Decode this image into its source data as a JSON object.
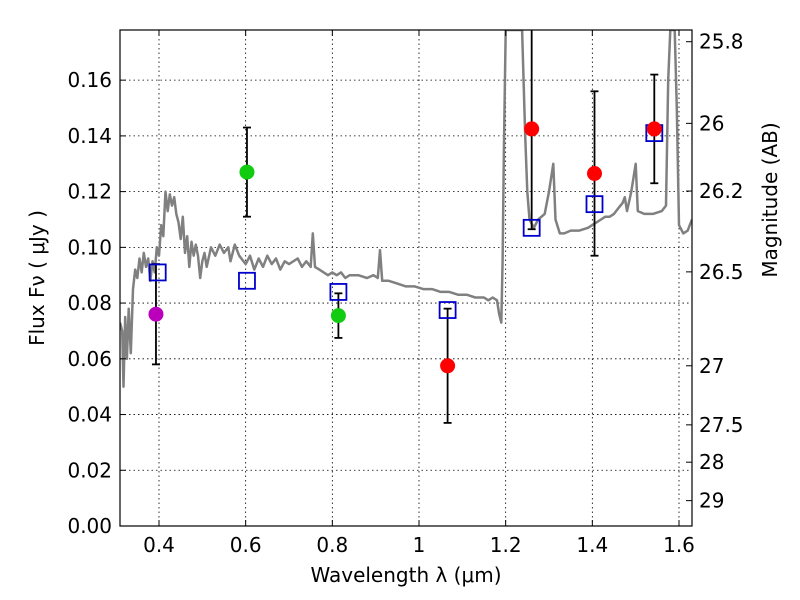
{
  "chart_data": {
    "type": "scatter",
    "xlabel": "Wavelength  λ (μm)",
    "ylabel": "Flux  Fν  ( μJy )",
    "ylabel_right": "Magnitude (AB)",
    "xlim": [
      0.31,
      1.63
    ],
    "ylim": [
      0.0,
      0.178
    ],
    "x_ticks": [
      0.4,
      0.6,
      0.8,
      1.0,
      1.2,
      1.4,
      1.6
    ],
    "x_tick_labels": [
      "0.4",
      "0.6",
      "0.8",
      "1",
      "1.2",
      "1.4",
      "1.6"
    ],
    "y_ticks": [
      0.0,
      0.02,
      0.04,
      0.06,
      0.08,
      0.1,
      0.12,
      0.14,
      0.16
    ],
    "y_tick_labels": [
      "0.00",
      "0.02",
      "0.04",
      "0.06",
      "0.08",
      "0.10",
      "0.12",
      "0.14",
      "0.16"
    ],
    "right_ticks": [
      {
        "label": "25.8",
        "flux": 0.1738
      },
      {
        "label": "26",
        "flux": 0.1445
      },
      {
        "label": "26.2",
        "flux": 0.1202
      },
      {
        "label": "26.5",
        "flux": 0.0912
      },
      {
        "label": "27",
        "flux": 0.0575
      },
      {
        "label": "27.5",
        "flux": 0.0363
      },
      {
        "label": "28",
        "flux": 0.0229
      },
      {
        "label": "29",
        "flux": 0.0091
      }
    ],
    "grid": true,
    "grid_style": "dotted",
    "colors": {
      "spectrum": "#808080",
      "model_box": "#0000cc",
      "error_bar": "#000000",
      "purple": "#bb00bb",
      "green": "#11cc11",
      "red": "#ff0000"
    },
    "series": [
      {
        "name": "observed photometry",
        "points": [
          {
            "x": 0.393,
            "y": 0.076,
            "err": 0.018,
            "color": "purple"
          },
          {
            "x": 0.603,
            "y": 0.127,
            "err": 0.016,
            "color": "green"
          },
          {
            "x": 0.814,
            "y": 0.0755,
            "err": 0.008,
            "color": "green"
          },
          {
            "x": 1.066,
            "y": 0.0575,
            "err": 0.0205,
            "color": "red"
          },
          {
            "x": 1.26,
            "y": 0.1425,
            "err": 0.036,
            "color": "red"
          },
          {
            "x": 1.405,
            "y": 0.1265,
            "err": 0.0295,
            "color": "red"
          },
          {
            "x": 1.543,
            "y": 0.1425,
            "err": 0.0195,
            "color": "red"
          }
        ]
      },
      {
        "name": "model band flux",
        "points": [
          {
            "x": 0.397,
            "y": 0.091
          },
          {
            "x": 0.603,
            "y": 0.088
          },
          {
            "x": 0.814,
            "y": 0.084
          },
          {
            "x": 1.066,
            "y": 0.0775
          },
          {
            "x": 1.26,
            "y": 0.107
          },
          {
            "x": 1.405,
            "y": 0.1155
          },
          {
            "x": 1.543,
            "y": 0.141
          }
        ]
      },
      {
        "name": "model spectrum",
        "points": [
          [
            0.31,
            0.073
          ],
          [
            0.315,
            0.07
          ],
          [
            0.318,
            0.05
          ],
          [
            0.322,
            0.075
          ],
          [
            0.326,
            0.06
          ],
          [
            0.33,
            0.078
          ],
          [
            0.335,
            0.062
          ],
          [
            0.34,
            0.085
          ],
          [
            0.345,
            0.092
          ],
          [
            0.35,
            0.089
          ],
          [
            0.355,
            0.096
          ],
          [
            0.36,
            0.091
          ],
          [
            0.365,
            0.098
          ],
          [
            0.37,
            0.093
          ],
          [
            0.375,
            0.096
          ],
          [
            0.38,
            0.088
          ],
          [
            0.385,
            0.095
          ],
          [
            0.39,
            0.091
          ],
          [
            0.395,
            0.1
          ],
          [
            0.4,
            0.097
          ],
          [
            0.405,
            0.108
          ],
          [
            0.41,
            0.104
          ],
          [
            0.415,
            0.12
          ],
          [
            0.42,
            0.113
          ],
          [
            0.425,
            0.119
          ],
          [
            0.43,
            0.115
          ],
          [
            0.435,
            0.118
          ],
          [
            0.44,
            0.112
          ],
          [
            0.445,
            0.109
          ],
          [
            0.45,
            0.103
          ],
          [
            0.455,
            0.111
          ],
          [
            0.46,
            0.098
          ],
          [
            0.465,
            0.104
          ],
          [
            0.47,
            0.093
          ],
          [
            0.475,
            0.102
          ],
          [
            0.48,
            0.097
          ],
          [
            0.485,
            0.101
          ],
          [
            0.49,
            0.097
          ],
          [
            0.495,
            0.089
          ],
          [
            0.5,
            0.095
          ],
          [
            0.505,
            0.098
          ],
          [
            0.51,
            0.093
          ],
          [
            0.52,
            0.1
          ],
          [
            0.53,
            0.097
          ],
          [
            0.54,
            0.101
          ],
          [
            0.55,
            0.098
          ],
          [
            0.56,
            0.1
          ],
          [
            0.565,
            0.095
          ],
          [
            0.575,
            0.101
          ],
          [
            0.585,
            0.097
          ],
          [
            0.6,
            0.094
          ],
          [
            0.61,
            0.097
          ],
          [
            0.62,
            0.092
          ],
          [
            0.63,
            0.096
          ],
          [
            0.64,
            0.093
          ],
          [
            0.65,
            0.097
          ],
          [
            0.66,
            0.094
          ],
          [
            0.67,
            0.096
          ],
          [
            0.68,
            0.092
          ],
          [
            0.69,
            0.095
          ],
          [
            0.7,
            0.094
          ],
          [
            0.72,
            0.096
          ],
          [
            0.73,
            0.093
          ],
          [
            0.74,
            0.095
          ],
          [
            0.75,
            0.093
          ],
          [
            0.755,
            0.105
          ],
          [
            0.76,
            0.093
          ],
          [
            0.77,
            0.092
          ],
          [
            0.78,
            0.091
          ],
          [
            0.79,
            0.09
          ],
          [
            0.8,
            0.091
          ],
          [
            0.81,
            0.09
          ],
          [
            0.82,
            0.091
          ],
          [
            0.83,
            0.089
          ],
          [
            0.84,
            0.09
          ],
          [
            0.86,
            0.09
          ],
          [
            0.88,
            0.089
          ],
          [
            0.895,
            0.09
          ],
          [
            0.905,
            0.089
          ],
          [
            0.91,
            0.099
          ],
          [
            0.915,
            0.088
          ],
          [
            0.93,
            0.088
          ],
          [
            0.95,
            0.087
          ],
          [
            0.97,
            0.086
          ],
          [
            0.99,
            0.086
          ],
          [
            1.01,
            0.085
          ],
          [
            1.03,
            0.085
          ],
          [
            1.05,
            0.084
          ],
          [
            1.07,
            0.084
          ],
          [
            1.09,
            0.083
          ],
          [
            1.11,
            0.083
          ],
          [
            1.13,
            0.082
          ],
          [
            1.15,
            0.082
          ],
          [
            1.16,
            0.081
          ],
          [
            1.17,
            0.082
          ],
          [
            1.18,
            0.081
          ],
          [
            1.185,
            0.076
          ],
          [
            1.19,
            0.073
          ],
          [
            1.193,
            0.095
          ],
          [
            1.196,
            0.135
          ],
          [
            1.2,
            0.178
          ],
          [
            1.21,
            0.178
          ],
          [
            1.22,
            0.178
          ],
          [
            1.23,
            0.178
          ],
          [
            1.238,
            0.178
          ],
          [
            1.245,
            0.14
          ],
          [
            1.25,
            0.12
          ],
          [
            1.255,
            0.11
          ],
          [
            1.265,
            0.107
          ],
          [
            1.275,
            0.11
          ],
          [
            1.29,
            0.112
          ],
          [
            1.3,
            0.12
          ],
          [
            1.31,
            0.13
          ],
          [
            1.315,
            0.11
          ],
          [
            1.325,
            0.105
          ],
          [
            1.335,
            0.105
          ],
          [
            1.35,
            0.106
          ],
          [
            1.37,
            0.106
          ],
          [
            1.39,
            0.107
          ],
          [
            1.4,
            0.108
          ],
          [
            1.41,
            0.109
          ],
          [
            1.42,
            0.11
          ],
          [
            1.43,
            0.111
          ],
          [
            1.44,
            0.111
          ],
          [
            1.45,
            0.112
          ],
          [
            1.46,
            0.114
          ],
          [
            1.47,
            0.116
          ],
          [
            1.475,
            0.118
          ],
          [
            1.48,
            0.113
          ],
          [
            1.49,
            0.12
          ],
          [
            1.5,
            0.13
          ],
          [
            1.505,
            0.113
          ],
          [
            1.52,
            0.112
          ],
          [
            1.54,
            0.112
          ],
          [
            1.56,
            0.113
          ],
          [
            1.57,
            0.115
          ],
          [
            1.575,
            0.16
          ],
          [
            1.58,
            0.178
          ],
          [
            1.59,
            0.178
          ],
          [
            1.595,
            0.15
          ],
          [
            1.6,
            0.108
          ],
          [
            1.61,
            0.105
          ],
          [
            1.62,
            0.106
          ],
          [
            1.625,
            0.108
          ],
          [
            1.63,
            0.11
          ]
        ]
      }
    ]
  }
}
